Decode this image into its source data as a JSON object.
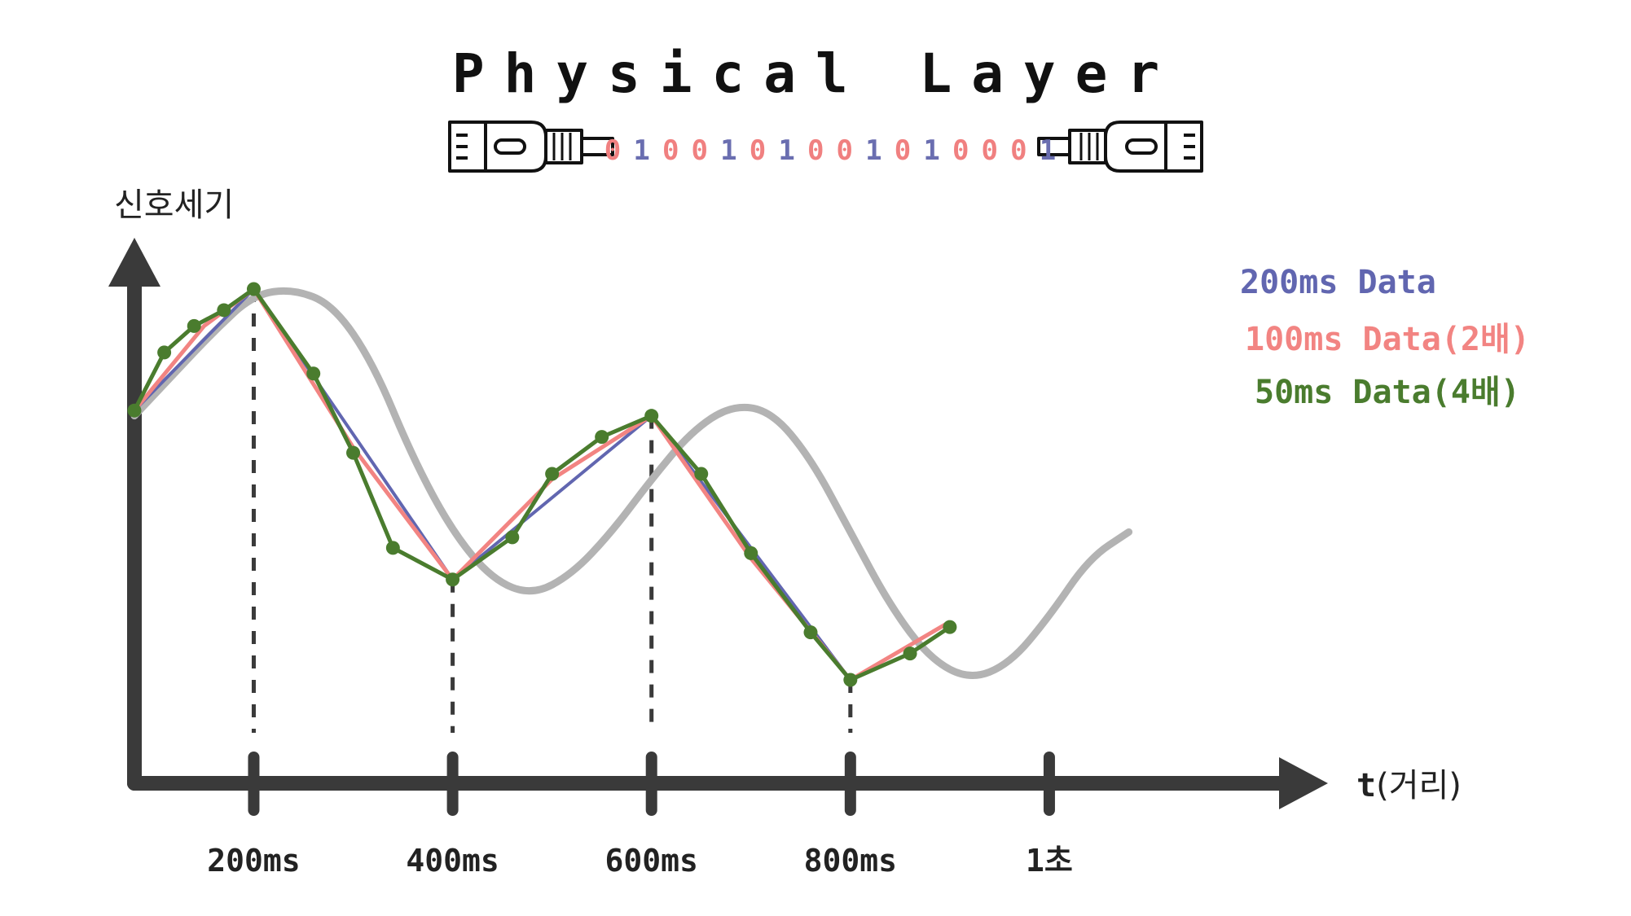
{
  "title": "Physical Layer",
  "bits": [
    "0",
    "1",
    "0",
    "0",
    "1",
    "0",
    "1",
    "0",
    "0",
    "1",
    "0",
    "1",
    "0",
    "0",
    "0",
    "1"
  ],
  "colors": {
    "bit_zero": "#f08080",
    "bit_one": "#6a6eb0",
    "axis": "#3a3a3a",
    "reference_curve": "#b3b3b3",
    "series_200ms": "#6166b0",
    "series_100ms": "#f28482",
    "series_50ms": "#4a7c2e",
    "text": "#222222"
  },
  "icons": {
    "left_connector": "ethernet-connector-icon",
    "right_connector": "ethernet-connector-icon"
  },
  "chart_data": {
    "type": "line",
    "ylabel": "신호세기",
    "xlabel_bold": "t",
    "xlabel_rest": "(거리)",
    "x_tick_labels": [
      "200ms",
      "400ms",
      "600ms",
      "800ms",
      "1초"
    ],
    "x_tick_values": [
      200,
      400,
      600,
      800,
      1000
    ],
    "xlim": [
      80,
      1100
    ],
    "legend": [
      {
        "label": "200ms Data",
        "color": "#6166b0"
      },
      {
        "label": "100ms Data(2배)",
        "color": "#f28482"
      },
      {
        "label": "50ms Data(4배)",
        "color": "#4a7c2e"
      }
    ],
    "legend_position": "top-right",
    "grid": false,
    "reference_curve_points": [
      [
        80,
        0.72
      ],
      [
        120,
        0.8
      ],
      [
        160,
        0.88
      ],
      [
        200,
        0.95
      ],
      [
        240,
        0.96
      ],
      [
        280,
        0.93
      ],
      [
        320,
        0.82
      ],
      [
        360,
        0.64
      ],
      [
        400,
        0.5
      ],
      [
        440,
        0.41
      ],
      [
        480,
        0.38
      ],
      [
        520,
        0.42
      ],
      [
        560,
        0.5
      ],
      [
        600,
        0.6
      ],
      [
        640,
        0.69
      ],
      [
        680,
        0.74
      ],
      [
        720,
        0.73
      ],
      [
        760,
        0.64
      ],
      [
        800,
        0.5
      ],
      [
        840,
        0.36
      ],
      [
        880,
        0.26
      ],
      [
        920,
        0.22
      ],
      [
        960,
        0.25
      ],
      [
        1000,
        0.34
      ],
      [
        1040,
        0.45
      ],
      [
        1080,
        0.5
      ]
    ],
    "series": [
      {
        "name": "200ms Data",
        "x": [
          80,
          200,
          400,
          600,
          800
        ],
        "y": [
          0.73,
          0.96,
          0.41,
          0.72,
          0.22
        ]
      },
      {
        "name": "100ms Data(2배)",
        "x": [
          80,
          150,
          200,
          300,
          400,
          500,
          600,
          700,
          800,
          900
        ],
        "y": [
          0.73,
          0.89,
          0.96,
          0.66,
          0.41,
          0.6,
          0.72,
          0.45,
          0.22,
          0.33
        ]
      },
      {
        "name": "50ms Data(4배)",
        "x": [
          80,
          110,
          140,
          170,
          200,
          260,
          300,
          340,
          400,
          460,
          500,
          550,
          600,
          650,
          700,
          760,
          800,
          860,
          900
        ],
        "y": [
          0.73,
          0.84,
          0.89,
          0.92,
          0.96,
          0.8,
          0.65,
          0.47,
          0.41,
          0.49,
          0.61,
          0.68,
          0.72,
          0.61,
          0.46,
          0.31,
          0.22,
          0.27,
          0.32
        ]
      }
    ]
  }
}
